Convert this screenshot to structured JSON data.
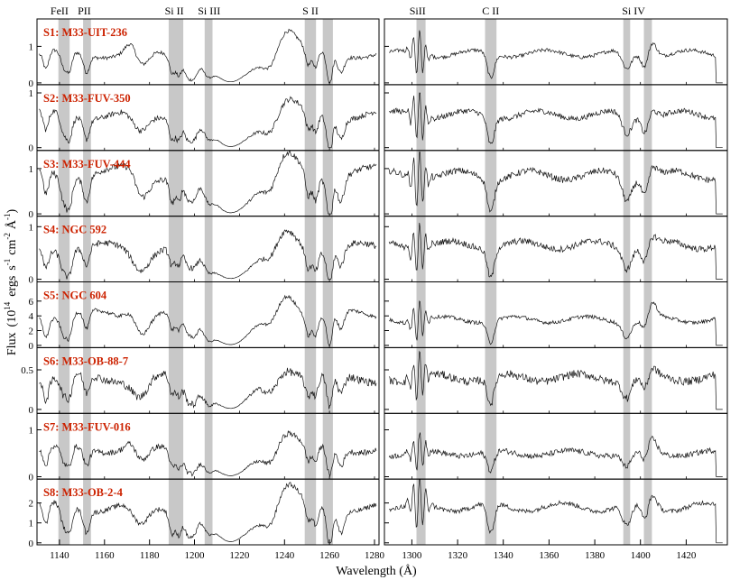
{
  "chart_data": {
    "type": "line",
    "ylabel_parts": {
      "a": "Flux",
      "b": "(10",
      "exp1": "14",
      "c": "ergs",
      "d": "s",
      "exp2": "-1",
      "e": "cm",
      "exp3": "-2",
      "f": "Å",
      "exp4": "-1",
      "g": ")"
    },
    "xlabel": "Wavelength (Å)",
    "left_panel": {
      "xlim": [
        1130,
        1282
      ],
      "xticks": [
        1140,
        1160,
        1180,
        1200,
        1220,
        1240,
        1260,
        1280
      ],
      "bands": [
        [
          1139.5,
          1144.5
        ],
        [
          1150.5,
          1154
        ],
        [
          1188.5,
          1195
        ],
        [
          1204.5,
          1208
        ],
        [
          1249,
          1254
        ],
        [
          1257,
          1261.5
        ]
      ],
      "line_labels": [
        {
          "text": "FeII",
          "x": 1140
        },
        {
          "text": "PII",
          "x": 1151
        },
        {
          "text": "Si II",
          "x": 1191
        },
        {
          "text": "Si III",
          "x": 1206.5
        },
        {
          "text": "S II",
          "x": 1251.5
        }
      ]
    },
    "right_panel": {
      "xlim": [
        1288,
        1438
      ],
      "xticks": [
        1300,
        1320,
        1340,
        1360,
        1380,
        1400,
        1420
      ],
      "bands": [
        [
          1302,
          1306
        ],
        [
          1332,
          1337
        ],
        [
          1392.5,
          1395.5
        ],
        [
          1401.5,
          1405
        ]
      ],
      "line_labels": [
        {
          "text": "SiII",
          "x": 1302.5
        },
        {
          "text": "C II",
          "x": 1334.5
        },
        {
          "text": "Si IV",
          "x": 1397
        }
      ]
    },
    "stars": [
      {
        "label": "S1: M33-UIT-236",
        "ylim": [
          -0.05,
          1.75
        ],
        "yticks": [
          0,
          1
        ],
        "ytick_labels": [
          "0",
          "1"
        ],
        "continuum": 0.8,
        "noise": 0.05,
        "right_level": 0.8,
        "emission": 1.5
      },
      {
        "label": "S2: M33-FUV-350",
        "ylim": [
          -0.05,
          1.15
        ],
        "yticks": [
          0,
          1
        ],
        "ytick_labels": [
          "0",
          "1"
        ],
        "continuum": 0.6,
        "noise": 0.05,
        "right_level": 0.6,
        "emission": 0.85
      },
      {
        "label": "S3: M33-FUV-444",
        "ylim": [
          -0.05,
          1.4
        ],
        "yticks": [
          0,
          1
        ],
        "ytick_labels": [
          "0",
          "1"
        ],
        "continuum": 0.9,
        "noise": 0.07,
        "right_level": 0.85,
        "emission": 1.25
      },
      {
        "label": "S4: NGC 592",
        "ylim": [
          -0.05,
          1.2
        ],
        "yticks": [
          0,
          1
        ],
        "ytick_labels": [
          "0",
          "1"
        ],
        "continuum": 0.6,
        "noise": 0.06,
        "right_level": 0.65,
        "emission": 0.9
      },
      {
        "label": "S5: NGC 604",
        "ylim": [
          -0.3,
          8.6
        ],
        "yticks": [
          0,
          2,
          4,
          6
        ],
        "ytick_labels": [
          "0",
          "2",
          "4",
          "6"
        ],
        "continuum": 4.2,
        "noise": 0.25,
        "right_level": 3.5,
        "emission": 7.0
      },
      {
        "label": "S6: M33-OB-88-7",
        "ylim": [
          -0.05,
          0.78
        ],
        "yticks": [
          0,
          0.5
        ],
        "ytick_labels": [
          "0",
          "0.5"
        ],
        "continuum": 0.4,
        "noise": 0.05,
        "right_level": 0.4,
        "emission": 0.55
      },
      {
        "label": "S7: M33-FUV-016",
        "ylim": [
          -0.05,
          1.35
        ],
        "yticks": [
          0,
          1
        ],
        "ytick_labels": [
          "0",
          "1"
        ],
        "continuum": 0.6,
        "noise": 0.06,
        "right_level": 0.5,
        "emission": 1.0
      },
      {
        "label": "S8: M33-OB-2-4",
        "ylim": [
          -0.1,
          3.2
        ],
        "yticks": [
          0,
          1,
          2
        ],
        "ytick_labels": [
          "0",
          "1",
          "2"
        ],
        "continuum": 1.8,
        "noise": 0.12,
        "right_level": 1.8,
        "emission": 2.9
      }
    ],
    "colors": {
      "band": "#c8c8c8",
      "label": "#cc2200",
      "line": "#111111",
      "axis": "#000000"
    }
  }
}
